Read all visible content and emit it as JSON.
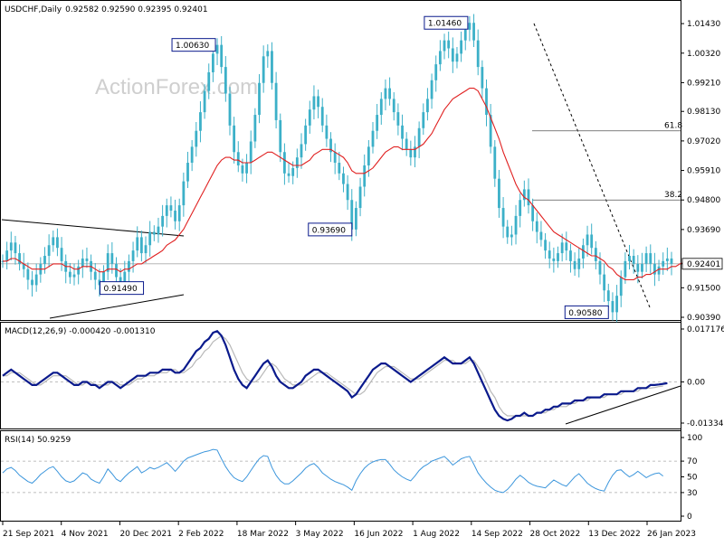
{
  "header": {
    "instrument": "USDCHF,Daily",
    "ohlc": "0.92582 0.92590 0.92395 0.92401"
  },
  "watermark": "ActionForex.com",
  "colors": {
    "candle": "#3cb0c8",
    "sma": "#e02020",
    "macd": "#0a1a8c",
    "signal": "#b8b8b8",
    "rsi": "#3c96dc",
    "grid": "#aaaaaa",
    "box": "#0a1a8c"
  },
  "chart_data": [
    {
      "type": "line",
      "name": "price",
      "title": "USDCHF,Daily",
      "ylim": [
        0.9039,
        1.0157
      ],
      "y_ticks": [
        "1.01430",
        "1.00320",
        "0.99210",
        "0.98130",
        "0.97020",
        "0.95910",
        "0.94800",
        "0.93690",
        "0.92401",
        "0.91500",
        "0.90390"
      ],
      "y_tick_values": [
        1.0143,
        1.0032,
        0.9921,
        0.9813,
        0.9702,
        0.9591,
        0.948,
        0.9369,
        0.92401,
        0.915,
        0.9039
      ],
      "x_ticks": [
        "21 Sep 2021",
        "4 Nov 2021",
        "20 Dec 2021",
        "2 Feb 2022",
        "18 Mar 2022",
        "3 May 2022",
        "16 Jun 2022",
        "1 Aug 2022",
        "14 Sep 2022",
        "28 Oct 2022",
        "13 Dec 2022",
        "26 Jan 2023"
      ],
      "current_price": 0.92401,
      "close_series": [
        0.925,
        0.929,
        0.932,
        0.928,
        0.924,
        0.922,
        0.918,
        0.916,
        0.92,
        0.924,
        0.927,
        0.931,
        0.934,
        0.93,
        0.925,
        0.921,
        0.919,
        0.92,
        0.923,
        0.926,
        0.925,
        0.921,
        0.918,
        0.916,
        0.921,
        0.928,
        0.924,
        0.919,
        0.917,
        0.921,
        0.925,
        0.929,
        0.934,
        0.928,
        0.931,
        0.936,
        0.935,
        0.938,
        0.942,
        0.946,
        0.944,
        0.94,
        0.946,
        0.955,
        0.962,
        0.968,
        0.974,
        0.981,
        0.989,
        0.996,
        1.003,
        1.0063,
        0.998,
        0.988,
        0.976,
        0.966,
        0.961,
        0.958,
        0.962,
        0.97,
        0.98,
        0.992,
        1.002,
        1.004,
        0.992,
        0.978,
        0.966,
        0.958,
        0.957,
        0.96,
        0.964,
        0.969,
        0.976,
        0.982,
        0.987,
        0.983,
        0.976,
        0.971,
        0.966,
        0.962,
        0.958,
        0.954,
        0.948,
        0.9369,
        0.945,
        0.953,
        0.961,
        0.968,
        0.974,
        0.98,
        0.986,
        0.99,
        0.986,
        0.981,
        0.976,
        0.971,
        0.967,
        0.964,
        0.968,
        0.975,
        0.981,
        0.986,
        0.993,
        0.999,
        1.004,
        1.008,
        1.005,
        1.0,
        1.003,
        1.008,
        1.012,
        1.0146,
        1.008,
        0.998,
        0.99,
        0.98,
        0.968,
        0.956,
        0.945,
        0.938,
        0.934,
        0.935,
        0.942,
        0.948,
        0.952,
        0.946,
        0.94,
        0.936,
        0.933,
        0.929,
        0.926,
        0.925,
        0.928,
        0.932,
        0.929,
        0.925,
        0.922,
        0.926,
        0.931,
        0.935,
        0.93,
        0.925,
        0.92,
        0.914,
        0.91,
        0.9058,
        0.912,
        0.919,
        0.925,
        0.927,
        0.924,
        0.921,
        0.924,
        0.928,
        0.924,
        0.92,
        0.923,
        0.925,
        0.926,
        0.924
      ],
      "sma_series": [
        0.925,
        0.925,
        0.926,
        0.926,
        0.925,
        0.924,
        0.923,
        0.922,
        0.922,
        0.922,
        0.922,
        0.923,
        0.924,
        0.924,
        0.924,
        0.923,
        0.923,
        0.922,
        0.922,
        0.923,
        0.923,
        0.923,
        0.922,
        0.921,
        0.921,
        0.922,
        0.922,
        0.922,
        0.921,
        0.922,
        0.922,
        0.923,
        0.924,
        0.924,
        0.925,
        0.926,
        0.927,
        0.928,
        0.929,
        0.931,
        0.932,
        0.933,
        0.935,
        0.937,
        0.94,
        0.943,
        0.946,
        0.949,
        0.952,
        0.955,
        0.958,
        0.961,
        0.963,
        0.964,
        0.964,
        0.963,
        0.963,
        0.962,
        0.962,
        0.962,
        0.963,
        0.964,
        0.965,
        0.966,
        0.966,
        0.965,
        0.964,
        0.963,
        0.962,
        0.961,
        0.961,
        0.961,
        0.962,
        0.963,
        0.965,
        0.966,
        0.967,
        0.967,
        0.967,
        0.966,
        0.965,
        0.964,
        0.962,
        0.959,
        0.958,
        0.958,
        0.958,
        0.959,
        0.96,
        0.962,
        0.964,
        0.966,
        0.967,
        0.968,
        0.968,
        0.967,
        0.967,
        0.967,
        0.967,
        0.968,
        0.969,
        0.971,
        0.973,
        0.976,
        0.979,
        0.982,
        0.984,
        0.986,
        0.987,
        0.988,
        0.989,
        0.99,
        0.99,
        0.989,
        0.986,
        0.983,
        0.979,
        0.975,
        0.971,
        0.966,
        0.962,
        0.958,
        0.954,
        0.951,
        0.949,
        0.948,
        0.946,
        0.944,
        0.942,
        0.94,
        0.938,
        0.936,
        0.935,
        0.934,
        0.933,
        0.932,
        0.931,
        0.93,
        0.929,
        0.928,
        0.927,
        0.927,
        0.926,
        0.925,
        0.923,
        0.922,
        0.92,
        0.919,
        0.918,
        0.918,
        0.918,
        0.919,
        0.919,
        0.92,
        0.92,
        0.921,
        0.922,
        0.922,
        0.922,
        0.923,
        0.923,
        0.924,
        0.9245
      ],
      "annotations": [
        {
          "label": "1.00630",
          "price": 1.0063,
          "at": 51
        },
        {
          "label": "0.93690",
          "price": 0.9369,
          "at": 83
        },
        {
          "label": "1.01460",
          "price": 1.0146,
          "at": 111
        },
        {
          "label": "0.90580",
          "price": 0.9058,
          "at": 144
        },
        {
          "label": "0.91490",
          "price": 0.9149,
          "at": 24
        }
      ],
      "fib_levels": [
        {
          "label": "61.8",
          "price": 0.974
        },
        {
          "label": "38.2",
          "price": 0.948
        }
      ]
    },
    {
      "type": "line",
      "name": "macd",
      "title": "MACD(12,26,9) -0.000420 -0.001310",
      "ylim": [
        -0.01334,
        0.01717
      ],
      "y_ticks": [
        "0.017176",
        "0.00",
        "-0.01334"
      ],
      "y_tick_values": [
        0.017176,
        0.0,
        -0.01334
      ],
      "series": [
        {
          "values": [
            0.002,
            0.003,
            0.004,
            0.003,
            0.002,
            0.001,
            0.0,
            -0.001,
            -0.001,
            0.0,
            0.001,
            0.002,
            0.003,
            0.003,
            0.002,
            0.001,
            0.0,
            -0.001,
            -0.001,
            0.0,
            0.0,
            -0.001,
            -0.001,
            -0.002,
            -0.001,
            0.0,
            0.0,
            -0.001,
            -0.002,
            -0.001,
            0.0,
            0.001,
            0.002,
            0.002,
            0.002,
            0.003,
            0.003,
            0.003,
            0.004,
            0.004,
            0.004,
            0.003,
            0.003,
            0.004,
            0.006,
            0.008,
            0.01,
            0.011,
            0.013,
            0.014,
            0.016,
            0.0165,
            0.015,
            0.012,
            0.008,
            0.004,
            0.001,
            -0.001,
            -0.002,
            0.0,
            0.002,
            0.004,
            0.006,
            0.007,
            0.005,
            0.002,
            0.0,
            -0.001,
            -0.002,
            -0.002,
            -0.001,
            0.0,
            0.002,
            0.003,
            0.004,
            0.004,
            0.003,
            0.002,
            0.001,
            0.0,
            -0.001,
            -0.002,
            -0.003,
            -0.005,
            -0.004,
            -0.002,
            0.0,
            0.002,
            0.004,
            0.005,
            0.006,
            0.006,
            0.005,
            0.004,
            0.003,
            0.002,
            0.001,
            0.0,
            0.001,
            0.002,
            0.003,
            0.004,
            0.005,
            0.006,
            0.007,
            0.008,
            0.007,
            0.006,
            0.006,
            0.006,
            0.007,
            0.008,
            0.006,
            0.003,
            0.0,
            -0.003,
            -0.006,
            -0.009,
            -0.011,
            -0.012,
            -0.0125,
            -0.012,
            -0.011,
            -0.011,
            -0.01,
            -0.011,
            -0.011,
            -0.01,
            -0.01,
            -0.009,
            -0.009,
            -0.008,
            -0.008,
            -0.007,
            -0.007,
            -0.007,
            -0.006,
            -0.006,
            -0.006,
            -0.005,
            -0.005,
            -0.005,
            -0.005,
            -0.004,
            -0.004,
            -0.004,
            -0.004,
            -0.003,
            -0.003,
            -0.003,
            -0.003,
            -0.002,
            -0.002,
            -0.002,
            -0.001,
            -0.001,
            -0.0008,
            -0.0006,
            -0.0004
          ]
        },
        {
          "values": [
            0.002,
            0.002,
            0.003,
            0.003,
            0.003,
            0.002,
            0.001,
            0.0,
            -0.001,
            -0.001,
            0.0,
            0.001,
            0.002,
            0.002,
            0.002,
            0.002,
            0.001,
            0.0,
            -0.001,
            -0.001,
            0.0,
            0.0,
            -0.001,
            -0.001,
            -0.001,
            -0.001,
            0.0,
            0.0,
            -0.001,
            -0.001,
            -0.001,
            0.0,
            0.001,
            0.001,
            0.002,
            0.002,
            0.002,
            0.003,
            0.003,
            0.003,
            0.004,
            0.004,
            0.003,
            0.003,
            0.004,
            0.005,
            0.007,
            0.008,
            0.01,
            0.011,
            0.013,
            0.014,
            0.015,
            0.014,
            0.012,
            0.009,
            0.006,
            0.003,
            0.001,
            0.0,
            0.0,
            0.001,
            0.003,
            0.005,
            0.006,
            0.005,
            0.003,
            0.001,
            0.0,
            -0.001,
            -0.001,
            -0.001,
            0.0,
            0.001,
            0.002,
            0.003,
            0.003,
            0.003,
            0.002,
            0.001,
            0.0,
            -0.001,
            -0.002,
            -0.003,
            -0.004,
            -0.004,
            -0.003,
            -0.001,
            0.001,
            0.003,
            0.004,
            0.005,
            0.005,
            0.005,
            0.004,
            0.003,
            0.002,
            0.001,
            0.001,
            0.001,
            0.002,
            0.003,
            0.004,
            0.005,
            0.006,
            0.007,
            0.007,
            0.007,
            0.006,
            0.006,
            0.006,
            0.007,
            0.007,
            0.005,
            0.003,
            0.0,
            -0.003,
            -0.005,
            -0.008,
            -0.01,
            -0.011,
            -0.011,
            -0.011,
            -0.011,
            -0.011,
            -0.011,
            -0.011,
            -0.01,
            -0.01,
            -0.01,
            -0.009,
            -0.009,
            -0.008,
            -0.008,
            -0.008,
            -0.007,
            -0.007,
            -0.006,
            -0.006,
            -0.006,
            -0.005,
            -0.005,
            -0.005,
            -0.005,
            -0.004,
            -0.004,
            -0.004,
            -0.004,
            -0.003,
            -0.003,
            -0.003,
            -0.003,
            -0.002,
            -0.002,
            -0.002,
            -0.0018,
            -0.0015,
            -0.0013
          ]
        }
      ]
    },
    {
      "type": "line",
      "name": "rsi",
      "title": "RSI(14) 50.9259",
      "ylim": [
        0,
        100
      ],
      "y_ticks": [
        "100",
        "70",
        "50",
        "30",
        "0"
      ],
      "y_tick_values": [
        100,
        70,
        50,
        30,
        0
      ],
      "values": [
        55,
        60,
        62,
        58,
        52,
        48,
        44,
        42,
        47,
        53,
        57,
        61,
        63,
        57,
        50,
        45,
        43,
        45,
        50,
        55,
        53,
        47,
        44,
        42,
        50,
        60,
        54,
        47,
        44,
        50,
        55,
        59,
        63,
        55,
        58,
        62,
        60,
        62,
        65,
        68,
        63,
        57,
        63,
        70,
        74,
        76,
        78,
        80,
        82,
        83,
        85,
        84,
        73,
        63,
        55,
        49,
        46,
        44,
        50,
        58,
        66,
        73,
        77,
        76,
        62,
        52,
        45,
        41,
        41,
        45,
        50,
        55,
        61,
        65,
        67,
        62,
        55,
        51,
        47,
        44,
        42,
        40,
        37,
        33,
        45,
        54,
        61,
        66,
        69,
        71,
        72,
        72,
        66,
        59,
        54,
        50,
        47,
        45,
        51,
        58,
        63,
        66,
        70,
        72,
        74,
        76,
        71,
        65,
        69,
        73,
        75,
        76,
        66,
        55,
        48,
        42,
        37,
        33,
        31,
        30,
        34,
        40,
        47,
        52,
        48,
        43,
        40,
        38,
        37,
        36,
        41,
        46,
        43,
        40,
        38,
        44,
        50,
        54,
        48,
        42,
        38,
        35,
        33,
        32,
        43,
        52,
        58,
        59,
        54,
        50,
        53,
        57,
        53,
        49,
        52,
        54,
        55,
        51
      ]
    }
  ]
}
